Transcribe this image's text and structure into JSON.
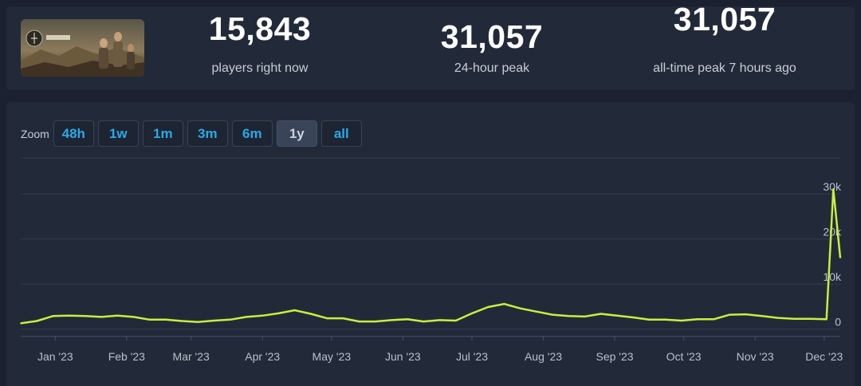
{
  "stats": [
    {
      "value": "15,843",
      "label": "players right now"
    },
    {
      "value": "31,057",
      "label": "24-hour peak"
    },
    {
      "value": "31,057",
      "label": "all-time peak 7 hours ago"
    }
  ],
  "zoom": {
    "label": "Zoom",
    "buttons": [
      "48h",
      "1w",
      "1m",
      "3m",
      "6m",
      "1y",
      "all"
    ],
    "active": "1y"
  },
  "colors": {
    "line": "#c6f03d",
    "accent": "#2aa9e8",
    "background": "#1b2130",
    "panel": "#222a39"
  },
  "chart_data": {
    "type": "line",
    "title": "",
    "xlabel": "",
    "ylabel": "",
    "x_tick_labels": [
      "Jan '23",
      "Feb '23",
      "Mar '23",
      "Apr '23",
      "May '23",
      "Jun '23",
      "Jul '23",
      "Aug '23",
      "Sep '23",
      "Oct '23",
      "Nov '23",
      "Dec '23"
    ],
    "y_tick_labels": [
      "0",
      "10k",
      "20k",
      "30k"
    ],
    "y_ticks": [
      0,
      10000,
      20000,
      30000
    ],
    "ylim": [
      -2000,
      38000
    ],
    "xlim": [
      "2022-12-17",
      "2023-12-08"
    ],
    "grid": true,
    "legend": "none",
    "series": [
      {
        "x": [
          "2022-12-17",
          "2022-12-24",
          "2022-12-31",
          "2023-01-07",
          "2023-01-14",
          "2023-01-21",
          "2023-01-28",
          "2023-02-04",
          "2023-02-11",
          "2023-02-18",
          "2023-02-25",
          "2023-03-04",
          "2023-03-11",
          "2023-03-18",
          "2023-03-25",
          "2023-04-01",
          "2023-04-08",
          "2023-04-15",
          "2023-04-22",
          "2023-04-29",
          "2023-05-06",
          "2023-05-13",
          "2023-05-20",
          "2023-05-27",
          "2023-06-03",
          "2023-06-10",
          "2023-06-17",
          "2023-06-24",
          "2023-07-01",
          "2023-07-08",
          "2023-07-15",
          "2023-07-22",
          "2023-07-29",
          "2023-08-05",
          "2023-08-12",
          "2023-08-19",
          "2023-08-26",
          "2023-09-02",
          "2023-09-09",
          "2023-09-16",
          "2023-09-23",
          "2023-09-30",
          "2023-10-07",
          "2023-10-14",
          "2023-10-21",
          "2023-10-28",
          "2023-11-04",
          "2023-11-11",
          "2023-11-18",
          "2023-11-25",
          "2023-12-02",
          "2023-12-05",
          "2023-12-08"
        ],
        "values": [
          1300,
          1800,
          2900,
          3000,
          2900,
          2700,
          3000,
          2700,
          2100,
          2100,
          1800,
          1600,
          1900,
          2100,
          2700,
          3000,
          3500,
          4200,
          3400,
          2400,
          2400,
          1700,
          1700,
          2000,
          2200,
          1700,
          2000,
          1900,
          3500,
          4900,
          5600,
          4600,
          3900,
          3200,
          2900,
          2800,
          3400,
          3000,
          2600,
          2100,
          2100,
          1900,
          2200,
          2200,
          3200,
          3300,
          2900,
          2500,
          2300,
          2300,
          2200,
          31057,
          15843
        ]
      }
    ]
  }
}
